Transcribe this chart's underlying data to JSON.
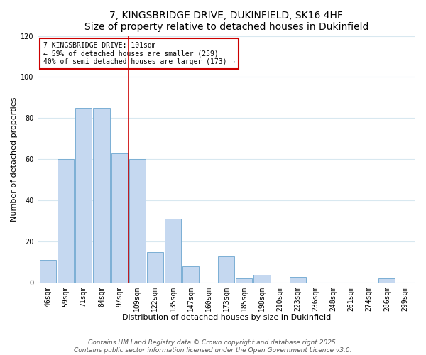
{
  "title": "7, KINGSBRIDGE DRIVE, DUKINFIELD, SK16 4HF",
  "subtitle": "Size of property relative to detached houses in Dukinfield",
  "xlabel": "Distribution of detached houses by size in Dukinfield",
  "ylabel": "Number of detached properties",
  "bar_labels": [
    "46sqm",
    "59sqm",
    "71sqm",
    "84sqm",
    "97sqm",
    "109sqm",
    "122sqm",
    "135sqm",
    "147sqm",
    "160sqm",
    "173sqm",
    "185sqm",
    "198sqm",
    "210sqm",
    "223sqm",
    "236sqm",
    "248sqm",
    "261sqm",
    "274sqm",
    "286sqm",
    "299sqm"
  ],
  "bar_values": [
    11,
    60,
    85,
    85,
    63,
    60,
    15,
    31,
    8,
    0,
    13,
    2,
    4,
    0,
    3,
    0,
    0,
    0,
    0,
    2,
    0
  ],
  "bar_color": "#c5d8f0",
  "bar_edge_color": "#7bafd4",
  "vline_x_index": 4.5,
  "vline_color": "#cc0000",
  "annotation_title": "7 KINGSBRIDGE DRIVE: 101sqm",
  "annotation_line2": "← 59% of detached houses are smaller (259)",
  "annotation_line3": "40% of semi-detached houses are larger (173) →",
  "annotation_box_color": "#cc0000",
  "ylim": [
    0,
    120
  ],
  "yticks": [
    0,
    20,
    40,
    60,
    80,
    100,
    120
  ],
  "footer1": "Contains HM Land Registry data © Crown copyright and database right 2025.",
  "footer2": "Contains public sector information licensed under the Open Government Licence v3.0.",
  "background_color": "#ffffff",
  "grid_color": "#d8e8f0",
  "title_fontsize": 10,
  "subtitle_fontsize": 9,
  "axis_label_fontsize": 8,
  "tick_fontsize": 7,
  "annotation_fontsize": 7,
  "footer_fontsize": 6.5
}
